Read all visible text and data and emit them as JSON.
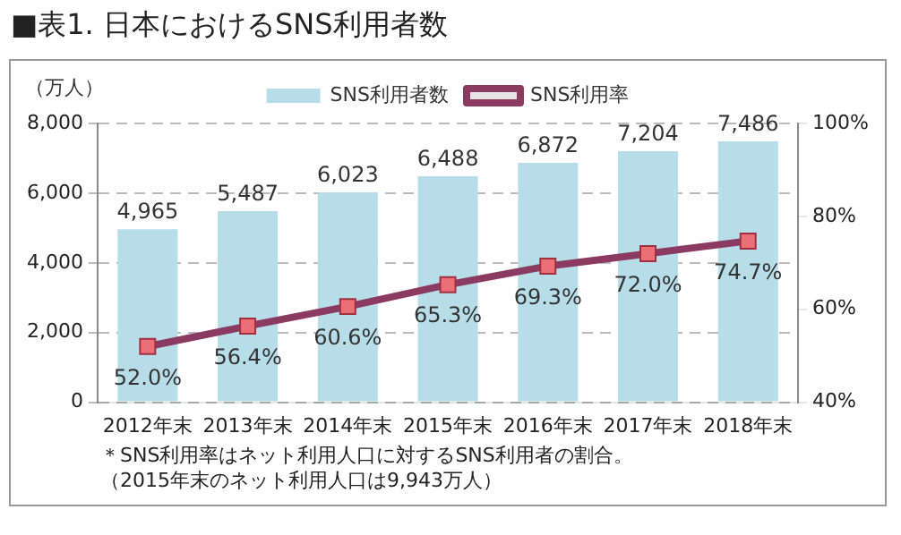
{
  "chart_data": {
    "type": "bar",
    "title": "■表1. 日本におけるSNS利用者数",
    "ylabel": "（万人）",
    "categories": [
      "2012年末",
      "2013年末",
      "2014年末",
      "2015年末",
      "2016年末",
      "2017年末",
      "2018年末"
    ],
    "series": [
      {
        "name": "SNS利用者数",
        "color": "#b7dde8",
        "values": [
          4965,
          5487,
          6023,
          6488,
          6872,
          7204,
          7486
        ],
        "value_labels": [
          "4,965",
          "5,487",
          "6,023",
          "6,488",
          "6,872",
          "7,204",
          "7,486"
        ]
      },
      {
        "name": "SNS利用率",
        "type": "line",
        "axis": "y2",
        "color": "#8b3a62",
        "values": [
          52.0,
          56.4,
          60.6,
          65.3,
          69.3,
          72.0,
          74.7
        ],
        "value_labels": [
          "52.0%",
          "56.4%",
          "60.6%",
          "65.3%",
          "69.3%",
          "72.0%",
          "74.7%"
        ]
      }
    ],
    "ylim": [
      0,
      8000
    ],
    "yticks": [
      0,
      {
        "value": 2000,
        "label": "2,000"
      },
      {
        "value": 4000,
        "label": "4,000"
      },
      {
        "value": 6000,
        "label": "6,000"
      },
      {
        "value": 8000,
        "label": "8,000"
      }
    ],
    "y2lim": [
      40,
      100
    ],
    "y2ticks": [
      {
        "value": 40,
        "label": "40%"
      },
      {
        "value": 60,
        "label": "60%"
      },
      {
        "value": 80,
        "label": "80%"
      },
      {
        "value": 100,
        "label": "100%"
      }
    ],
    "grid": "y",
    "legend": "top",
    "marker": "square",
    "annotations": [
      "＊SNS利用率はネット利用人口に対するSNS利用者の割合。",
      "（2015年末のネット利用人口は9,943万人）"
    ]
  }
}
